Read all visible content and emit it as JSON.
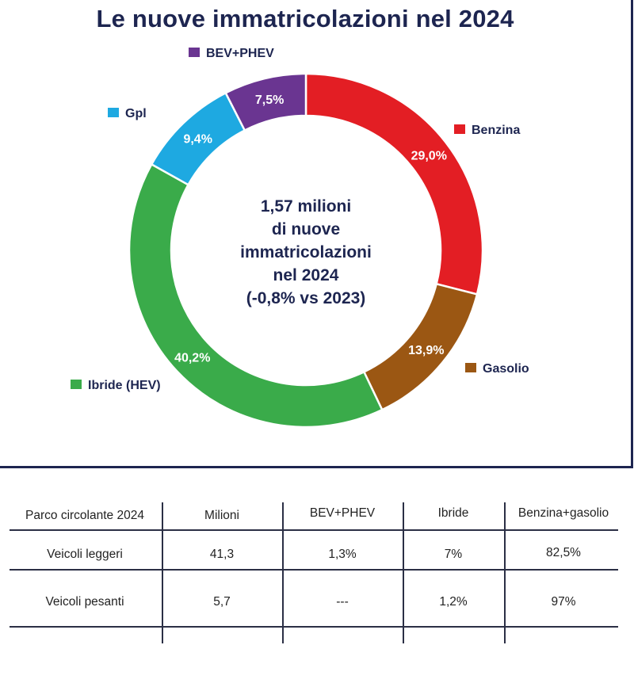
{
  "title": "Le nuove immatricolazioni nel 2024",
  "center_text": {
    "line1": "1,57 milioni",
    "line2": "di nuove",
    "line3": "immatricolazioni",
    "line4": "nel 2024",
    "line5": "(-0,8% vs 2023)"
  },
  "chart_data": {
    "type": "pie",
    "title": "Le nuove immatricolazioni nel 2024",
    "donut": true,
    "slices": [
      {
        "name": "Benzina",
        "value": 29.0,
        "label": "29,0%",
        "color": "#e31e24"
      },
      {
        "name": "Gasolio",
        "value": 13.9,
        "label": "13,9%",
        "color": "#9b5713"
      },
      {
        "name": "Ibride (HEV)",
        "value": 40.2,
        "label": "40,2%",
        "color": "#3aab4a"
      },
      {
        "name": "Gpl",
        "value": 9.4,
        "label": "9,4%",
        "color": "#1ea9e1"
      },
      {
        "name": "BEV+PHEV",
        "value": 7.5,
        "label": "7,5%",
        "color": "#6a3591"
      }
    ]
  },
  "table": {
    "headers": [
      "Parco circolante 2024",
      "Milioni",
      "BEV+PHEV",
      "Ibride",
      "Benzina+gasolio"
    ],
    "rows": [
      [
        "Veicoli leggeri",
        "41,3",
        "1,3%",
        "7%",
        "82,5%"
      ],
      [
        "Veicoli pesanti",
        "5,7",
        "---",
        "1,2%",
        "97%"
      ]
    ]
  },
  "colors": {
    "title": "#1d2550",
    "border": "#1d2550",
    "table_lines": "#2b2f45"
  }
}
